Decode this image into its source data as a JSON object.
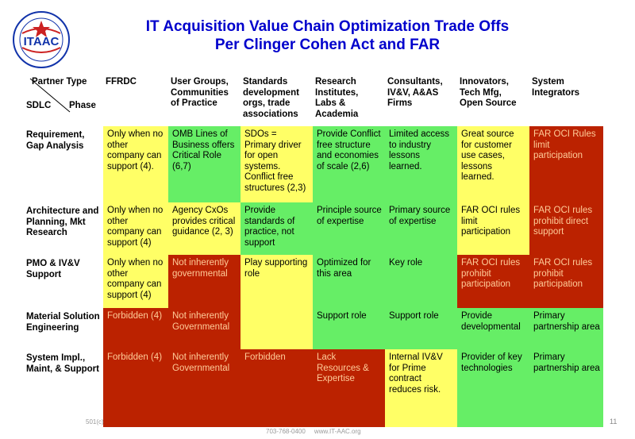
{
  "title_line1": "IT Acquisition Value Chain Optimization Trade Offs",
  "title_line2": "Per Clinger Cohen Act and FAR",
  "logo": {
    "text": "ITAAC",
    "icon": "itaac-seal-logo"
  },
  "corner": {
    "partner_type": "Partner Type",
    "sdlc": "SDLC",
    "phase": "Phase"
  },
  "columns": [
    "FFRDC",
    "User Groups, Communities of Practice",
    "Standards development orgs, trade associations",
    "Research Institutes, Labs & Academia",
    "Consultants, IV&V, A&AS Firms",
    "Innovators, Tech Mfg, Open Source",
    "System Integrators"
  ],
  "rows": [
    {
      "label": "Requirement, Gap Analysis",
      "cells": [
        {
          "text": "Only when no other company can support (4).",
          "color": "yellow"
        },
        {
          "text": "OMB Lines of Business offers Critical Role (6,7)",
          "color": "green"
        },
        {
          "text": "SDOs = Primary driver for open systems. Conflict free structures (2,3)",
          "color": "yellow"
        },
        {
          "text": "Provide Conflict free structure and economies of scale (2,6)",
          "color": "green"
        },
        {
          "text": "Limited access to industry lessons learned.",
          "color": "green"
        },
        {
          "text": "Great source for customer use cases, lessons learned.",
          "color": "yellow"
        },
        {
          "text": "FAR OCI Rules limit participation",
          "color": "red"
        }
      ]
    },
    {
      "label": "Architecture and Planning, Mkt Research",
      "cells": [
        {
          "text": "Only when no other company can support (4)",
          "color": "yellow"
        },
        {
          "text": "Agency CxOs provides critical guidance (2, 3)",
          "color": "yellow"
        },
        {
          "text": "Provide standards of practice, not support",
          "color": "green"
        },
        {
          "text": "Principle source of expertise",
          "color": "green"
        },
        {
          "text": "Primary source of expertise",
          "color": "green"
        },
        {
          "text": "FAR OCI rules limit participation",
          "color": "yellow"
        },
        {
          "text": "FAR OCI rules prohibit direct support",
          "color": "red"
        }
      ]
    },
    {
      "label": "PMO & IV&V Support",
      "cells": [
        {
          "text": "Only when no other company can support (4)",
          "color": "yellow"
        },
        {
          "text": "Not inherently governmental",
          "color": "red"
        },
        {
          "text": "Play supporting role",
          "color": "yellow"
        },
        {
          "text": "Optimized for this area",
          "color": "green"
        },
        {
          "text": "Key role",
          "color": "green"
        },
        {
          "text": "FAR OCI rules prohibit participation",
          "color": "red"
        },
        {
          "text": "FAR OCI rules prohibit participation",
          "color": "red"
        }
      ]
    },
    {
      "label": "Material Solution Engineering",
      "cells": [
        {
          "text": "Forbidden (4)",
          "color": "red"
        },
        {
          "text": "Not inherently Governmental",
          "color": "red"
        },
        {
          "text": "",
          "color": "yellow"
        },
        {
          "text": "Support role",
          "color": "green"
        },
        {
          "text": "Support role",
          "color": "green"
        },
        {
          "text": "Provide developmental",
          "color": "green"
        },
        {
          "text": "Primary partnership area",
          "color": "green"
        }
      ]
    },
    {
      "label": "System Impl., Maint, & Support",
      "cells": [
        {
          "text": "Forbidden (4)",
          "color": "red"
        },
        {
          "text": "Not inherently Governmental",
          "color": "red"
        },
        {
          "text": "Forbidden",
          "color": "red"
        },
        {
          "text": "Lack Resources & Expertise",
          "color": "red"
        },
        {
          "text": "Internal IV&V for Prime contract reduces risk.",
          "color": "yellow"
        },
        {
          "text": "Provider of key technologies",
          "color": "green"
        },
        {
          "text": "Primary partnership area",
          "color": "green"
        }
      ]
    }
  ],
  "footer": {
    "left": "501(c)",
    "center": "703-768-0400     www.IT-AAC.org",
    "page": "11"
  },
  "colors": {
    "yellow": "#ffff66",
    "green": "#66ee66",
    "red": "#bb2200",
    "title": "#0000cc"
  }
}
